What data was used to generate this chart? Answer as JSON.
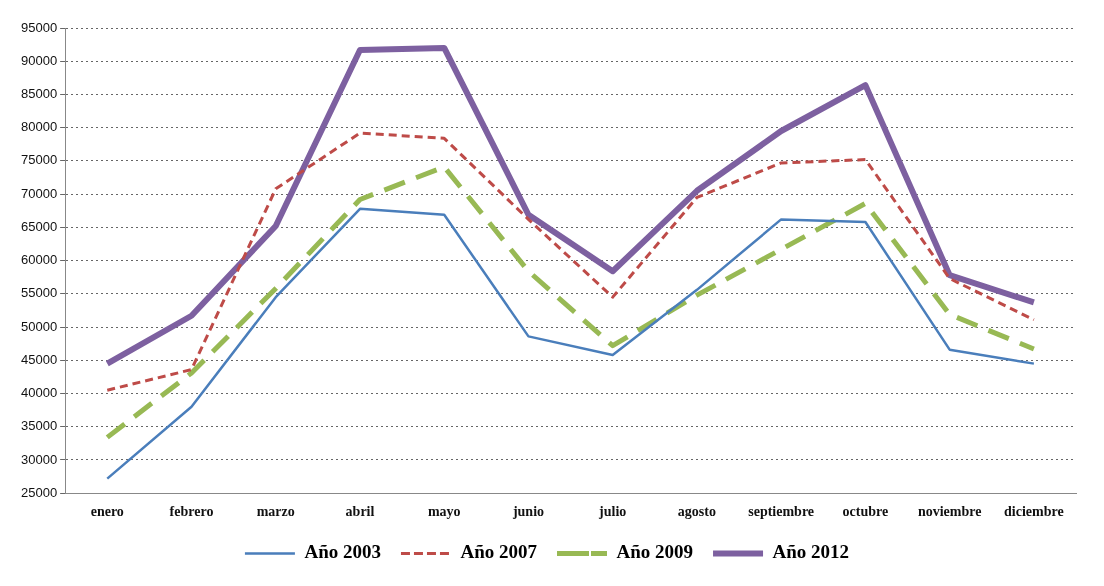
{
  "chart_data": {
    "type": "line",
    "categories": [
      "enero",
      "febrero",
      "marzo",
      "abril",
      "mayo",
      "junio",
      "julio",
      "agosto",
      "septiembre",
      "octubre",
      "noviembre",
      "diciembre"
    ],
    "series": [
      {
        "name": "Año 2003",
        "color": "#4a7ebb",
        "line_style": "solid",
        "values": [
          27200,
          38000,
          54500,
          67800,
          66900,
          48600,
          45800,
          55600,
          66200,
          65800,
          46600,
          44500
        ]
      },
      {
        "name": "Año 2007",
        "color": "#be4b48",
        "line_style": "dashed",
        "values": [
          40500,
          43600,
          70800,
          79200,
          78400,
          66200,
          54500,
          69500,
          74700,
          75200,
          57300,
          51100
        ]
      },
      {
        "name": "Año 2009",
        "color": "#98b954",
        "line_style": "dashed",
        "values": [
          33400,
          43100,
          55800,
          69200,
          74100,
          58400,
          47200,
          54800,
          61700,
          68600,
          51900,
          46700
        ]
      },
      {
        "name": "Año 2012",
        "color": "#7d60a0",
        "line_style": "solid",
        "values": [
          44500,
          51700,
          65200,
          91700,
          92000,
          66900,
          58400,
          70500,
          79500,
          86400,
          57800,
          53700
        ]
      }
    ],
    "ylim": [
      25000,
      95000
    ],
    "yticks": [
      25000,
      30000,
      35000,
      40000,
      45000,
      50000,
      55000,
      60000,
      65000,
      70000,
      75000,
      80000,
      85000,
      90000,
      95000
    ],
    "grid": "y",
    "legend": "bottom",
    "marker": "none"
  }
}
